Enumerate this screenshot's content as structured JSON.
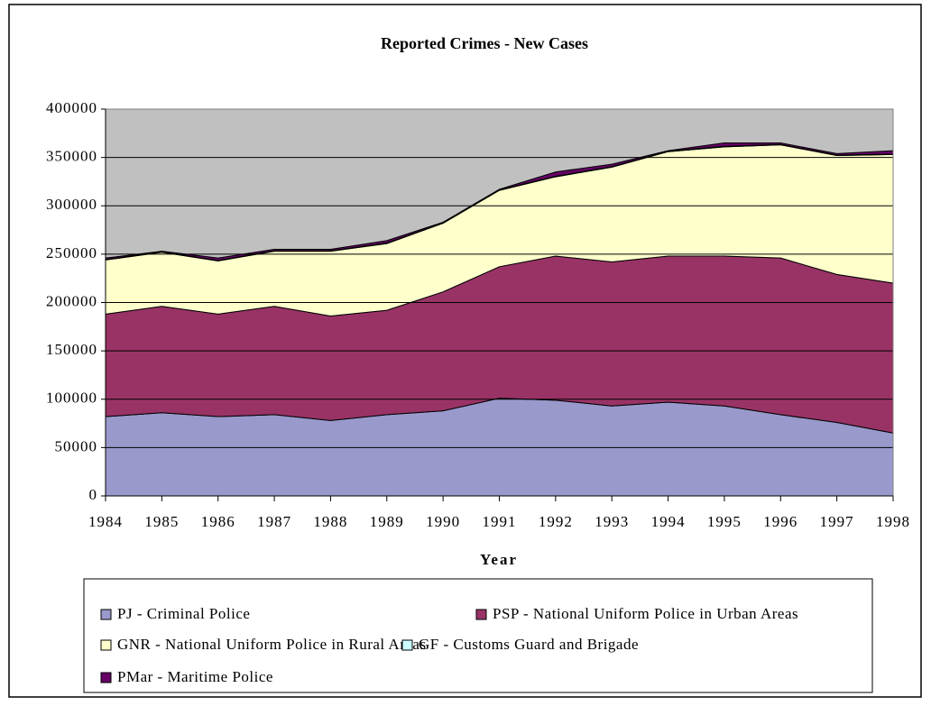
{
  "chart_data": {
    "type": "area",
    "stacked": true,
    "title": "Reported Crimes - New Cases",
    "x_label": "Year",
    "categories": [
      "1984",
      "1985",
      "1986",
      "1987",
      "1988",
      "1989",
      "1990",
      "1991",
      "1992",
      "1993",
      "1994",
      "1995",
      "1996",
      "1997",
      "1998"
    ],
    "ylim": [
      0,
      400000
    ],
    "yticks": [
      0,
      50000,
      100000,
      150000,
      200000,
      250000,
      300000,
      350000,
      400000
    ],
    "grid": true,
    "plot_background": "#c0c0c0",
    "series": [
      {
        "name": "PJ - Criminal Police",
        "color": "#9999cc",
        "values": [
          82000,
          86000,
          82000,
          84000,
          78000,
          84000,
          88000,
          101000,
          99000,
          93000,
          97000,
          93000,
          84000,
          76000,
          65000
        ]
      },
      {
        "name": "PSP - National Uniform Police in Urban Areas",
        "color": "#993366",
        "values": [
          106000,
          110000,
          106000,
          112000,
          108000,
          108000,
          123000,
          136000,
          149000,
          149000,
          151000,
          155000,
          162000,
          153000,
          155000
        ]
      },
      {
        "name": "GNR - National Uniform Police in Rural Areas",
        "color": "#ffffcc",
        "values": [
          56000,
          56000,
          55000,
          57000,
          67000,
          69000,
          71000,
          79000,
          82000,
          98000,
          108000,
          113000,
          117000,
          123000,
          133000
        ]
      },
      {
        "name": "GF - Customs Guard and Brigade",
        "color": "#ccffff",
        "values": [
          500,
          500,
          500,
          500,
          500,
          500,
          500,
          500,
          500,
          500,
          500,
          500,
          500,
          500,
          500
        ]
      },
      {
        "name": "PMar - Maritime Police",
        "color": "#660066",
        "values": [
          1500,
          500,
          2500,
          1500,
          1500,
          2500,
          500,
          500,
          4500,
          2500,
          500,
          3500,
          1500,
          1500,
          3500
        ]
      }
    ]
  }
}
